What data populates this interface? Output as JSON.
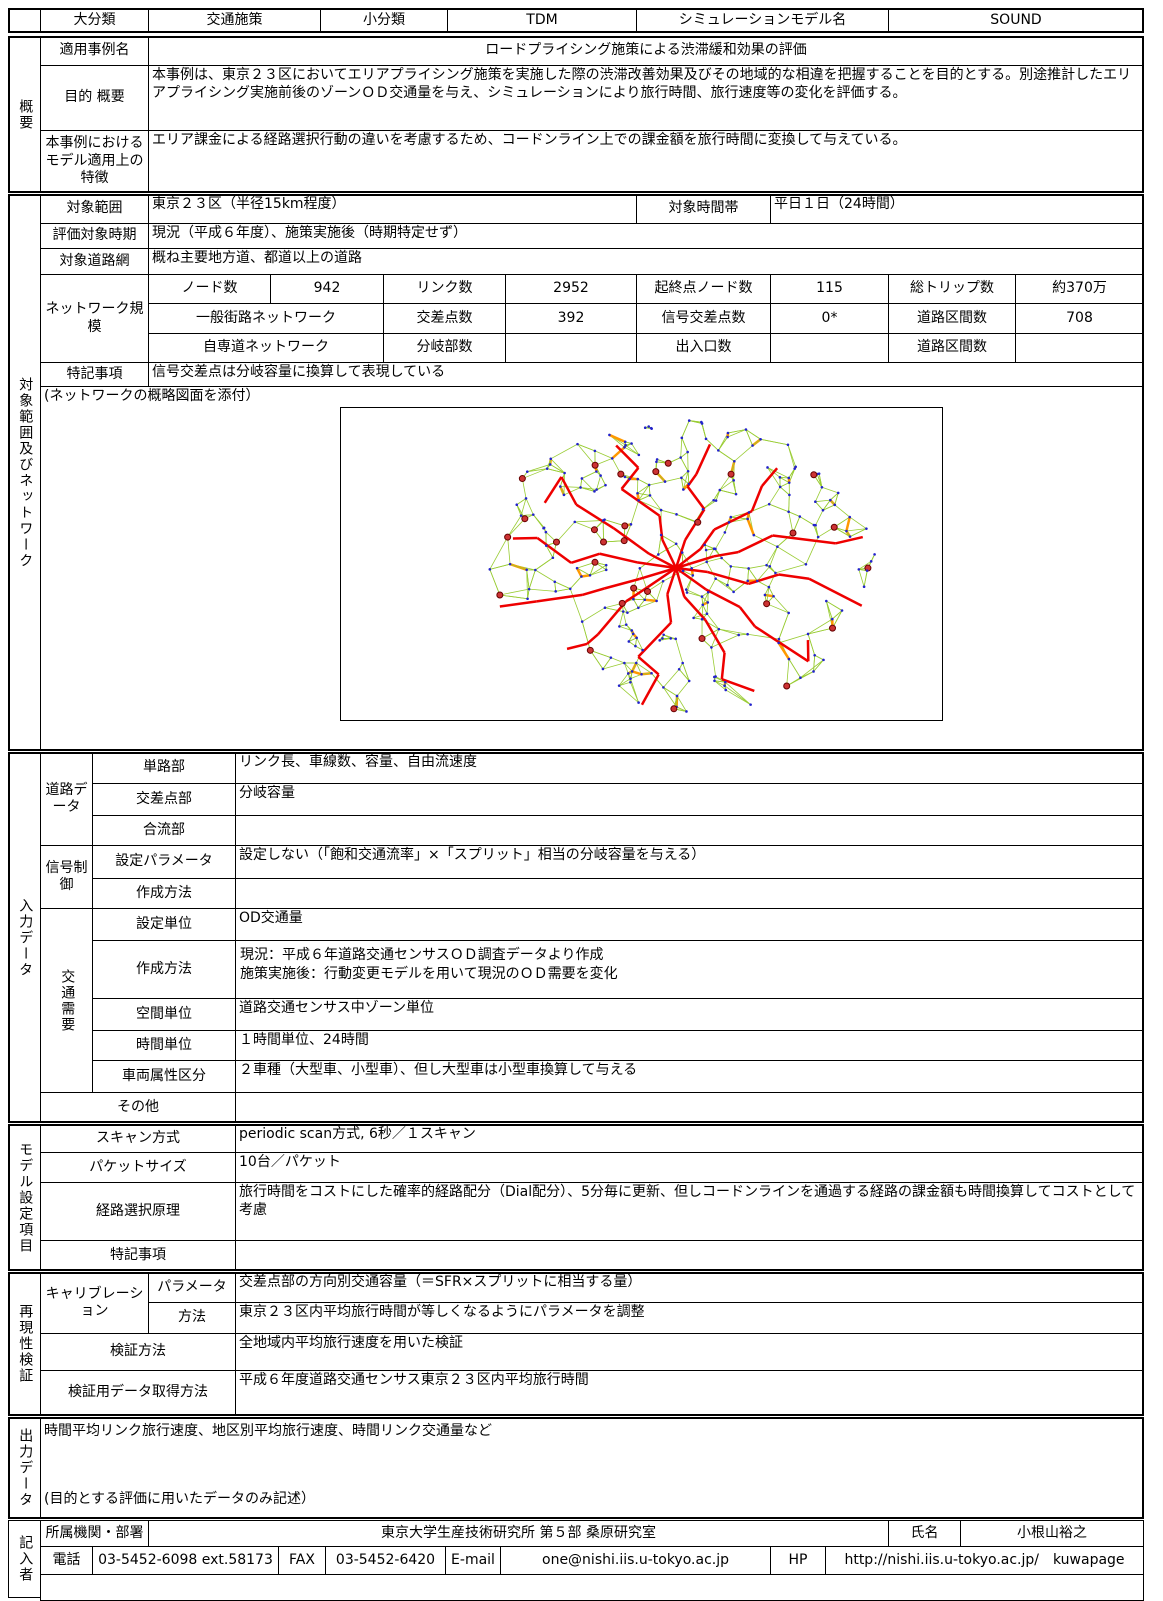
{
  "header": {
    "major_label": "大分類",
    "major": "交通施策",
    "minor_label": "小分類",
    "minor": "TDM",
    "model_label": "シミュレーションモデル名",
    "model": "SOUND"
  },
  "overview": {
    "section": "概要",
    "case_name_label": "適用事例名",
    "case_name": "ロードプライシング施策による渋滞緩和効果の評価",
    "purpose_label": "目的 概要",
    "purpose": "本事例は、東京２３区においてエリアプライシング施策を実施した際の渋滞改善効果及びその地域的な相違を把握することを目的とする。別途推計したエリアプライシング実施前後のゾーンＯＤ交通量を与え、シミュレーションにより旅行時間、旅行速度等の変化を評価する。",
    "feature_label": "本事例におけるモデル適用上の特徴",
    "feature": "エリア課金による経路選択行動の違いを考慮するため、コードンライン上での課金額を旅行時間に変換して与えている。"
  },
  "scope": {
    "section": "対象範囲及びネットワーク",
    "area_label": "対象範囲",
    "area": "東京２３区（半径15km程度）",
    "time_label": "対象時間帯",
    "time": "平日１日（24時間）",
    "period_label": "評価対象時期",
    "period": "現況（平成６年度）、施策実施後（時期特定せず）",
    "road_label": "対象道路網",
    "road": "概ね主要地方道、都道以上の道路",
    "network_label": "ネットワーク規模",
    "network": {
      "node_label": "ノード数",
      "nodes": 942,
      "link_label": "リンク数",
      "links": 2952,
      "od_label": "起終点ノード数",
      "od_nodes": 115,
      "trips_label": "総トリップ数",
      "trips": "約370万",
      "general_label": "一般街路ネットワーク",
      "intersection_label": "交差点数",
      "intersections": 392,
      "signal_label": "信号交差点数",
      "signals": "0*",
      "sections_label": "道路区間数",
      "sections": 708,
      "expressway_label": "自専道ネットワーク",
      "junction_label": "分岐部数",
      "entrance_label": "出入口数",
      "ex_sections_label": "道路区間数"
    },
    "notes_label": "特記事項",
    "notes": "信号交差点は分岐容量に換算して表現している",
    "map_caption": "(ネットワークの概略図面を添付）"
  },
  "input": {
    "section": "入力データ",
    "road_label": "道路データ",
    "link_label": "単路部",
    "link": "リンク長、車線数、容量、自由流速度",
    "intersection_label": "交差点部",
    "intersection": "分岐容量",
    "merge_label": "合流部",
    "signal_label": "信号制御",
    "param_label": "設定パラメータ",
    "param": "設定しない（「飽和交通流率」×「スプリット」相当の分岐容量を与える）",
    "signal_method_label": "作成方法",
    "demand_label": "交通需要",
    "unit_label": "設定単位",
    "unit": "OD交通量",
    "method_label": "作成方法",
    "method": [
      "現況：平成６年道路交通センサスＯＤ調査データより作成",
      "施策実施後：行動変更モデルを用いて現況のＯＤ需要を変化"
    ],
    "space_label": "空間単位",
    "space": "道路交通センサス中ゾーン単位",
    "time_unit_label": "時間単位",
    "time_unit": "１時間単位、24時間",
    "vehicle_label": "車両属性区分",
    "vehicle": "２車種（大型車、小型車）、但し大型車は小型車換算して与える",
    "other_label": "その他"
  },
  "model": {
    "section": "モデル設定項目",
    "scan_label": "スキャン方式",
    "scan": "periodic scan方式, 6秒／１スキャン",
    "packet_label": "パケットサイズ",
    "packet": "10台／パケット",
    "route_label": "経路選択原理",
    "route": "旅行時間をコストにした確率的経路配分（Dial配分）、5分毎に更新、但しコードンラインを通過する経路の課金額も時間換算してコストとして考慮",
    "notes_label": "特記事項"
  },
  "validation": {
    "section": "再現性検証",
    "calib_label": "キャリブレーション",
    "param_label": "パラメータ",
    "param": "交差点部の方向別交通容量（＝SFR×スプリットに相当する量）",
    "method_label": "方法",
    "method": "東京２３区内平均旅行時間が等しくなるようにパラメータを調整",
    "verify_label": "検証方法",
    "verify": "全地域内平均旅行速度を用いた検証",
    "data_label": "検証用データ取得方法",
    "data": "平成６年度道路交通センサス東京２３区内平均旅行時間"
  },
  "output": {
    "section": "出力データ",
    "text": "時間平均リンク旅行速度、地区別平均旅行速度、時間リンク交通量など",
    "note": "(目的とする評価に用いたデータのみ記述）"
  },
  "author": {
    "section": "記入者",
    "org_label": "所属機関・部署",
    "org": "東京大学生産技術研究所 第５部 桑原研究室",
    "name_label": "氏名",
    "name": "小根山裕之",
    "tel_label": "電話",
    "tel": "03-5452-6098 ext.58173",
    "fax_label": "FAX",
    "fax": "03-5452-6420",
    "email_label": "E-mail",
    "email": "one@nishi.iis.u-tokyo.ac.jp",
    "hp_label": "HP",
    "hp": "http://nishi.iis.u-tokyo.ac.jp/　kuwapage"
  }
}
